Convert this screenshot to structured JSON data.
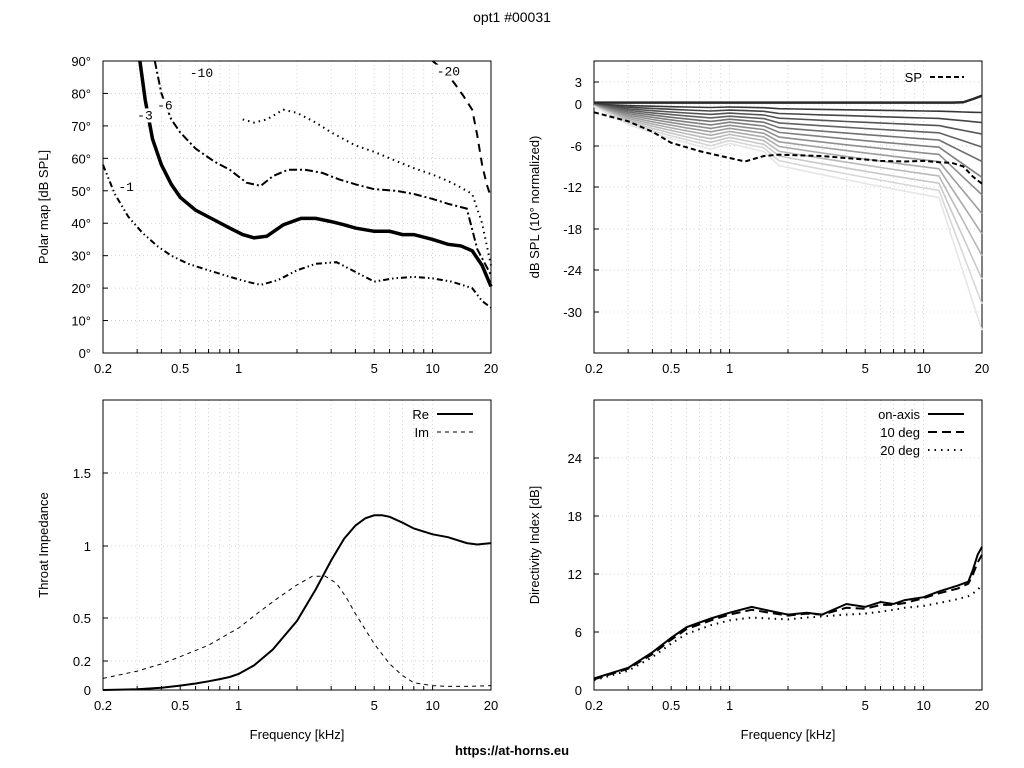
{
  "title": "opt1 #00031",
  "footer": "https://at-horns.eu",
  "chart_data": [
    {
      "id": "polar",
      "type": "line",
      "ylabel": "Polar map [dB SPL]",
      "xscale": "log",
      "xlim": [
        0.2,
        20
      ],
      "ylim": [
        0,
        90
      ],
      "xticks": [
        "0.2",
        "0.5",
        "1",
        "5",
        "10",
        "20"
      ],
      "yticks": [
        "0°",
        "10°",
        "20°",
        "30°",
        "40°",
        "50°",
        "60°",
        "70°",
        "80°",
        "90°"
      ],
      "grid": true,
      "series": [
        {
          "name": "-1",
          "x": [
            0.2,
            0.23,
            0.27,
            0.32,
            0.38,
            0.45,
            0.55,
            0.7,
            0.9,
            1.1,
            1.3,
            1.6,
            2.0,
            2.5,
            3.2,
            4.0,
            5.0,
            6.3,
            8.0,
            10,
            12.5,
            16,
            18,
            20
          ],
          "y": [
            58,
            49,
            42,
            37,
            33,
            30,
            27.5,
            25.5,
            23.5,
            22,
            21,
            22.5,
            25.5,
            27.5,
            28,
            25,
            22,
            23,
            23.5,
            23,
            22,
            20,
            16,
            14
          ],
          "label_x": 0.24,
          "label_y": 50
        },
        {
          "name": "-3",
          "x": [
            0.31,
            0.33,
            0.36,
            0.4,
            0.45,
            0.5,
            0.6,
            0.75,
            0.9,
            1.05,
            1.2,
            1.4,
            1.7,
            2.1,
            2.5,
            3.0,
            3.5,
            4.0,
            5.0,
            6.0,
            7.0,
            8.0,
            10,
            12,
            14,
            16,
            18,
            20
          ],
          "y": [
            90,
            78,
            66,
            58,
            52,
            48,
            44,
            41,
            38.5,
            36.5,
            35.5,
            36,
            39.5,
            41.5,
            41.5,
            40.5,
            39.5,
            38.5,
            37.5,
            37.5,
            36.5,
            36.5,
            35,
            33.5,
            33,
            31.5,
            27,
            20.5
          ],
          "label_x": 0.3,
          "label_y": 72
        },
        {
          "name": "-6",
          "x": [
            0.37,
            0.4,
            0.45,
            0.5,
            0.6,
            0.75,
            0.9,
            1.1,
            1.3,
            1.5,
            1.8,
            2.2,
            2.7,
            3.3,
            4.0,
            5.0,
            6.5,
            8.0,
            10,
            12,
            15,
            17,
            20
          ],
          "y": [
            90,
            80,
            72,
            68,
            63,
            59,
            56.5,
            52.5,
            51.5,
            54.5,
            56.5,
            56.5,
            55.5,
            53.5,
            52,
            50.5,
            50,
            49,
            47.5,
            46,
            44.5,
            32,
            24
          ],
          "label_x": 0.38,
          "label_y": 75
        },
        {
          "name": "-10",
          "x": [
            1.05,
            1.2,
            1.4,
            1.7,
            2.0,
            2.5,
            3.0,
            4.0,
            5.0,
            6.0,
            8.0,
            10,
            12,
            14,
            16,
            18,
            20
          ],
          "y": [
            72,
            71,
            72,
            75,
            74,
            71,
            68,
            64,
            62,
            60,
            57,
            55,
            53,
            51,
            49,
            40,
            27
          ],
          "label_x": 0.56,
          "label_y": 85
        },
        {
          "name": "-20",
          "x": [
            10,
            11.5,
            13,
            14.5,
            16,
            17,
            18,
            19,
            20
          ],
          "y": [
            90,
            87,
            83,
            79,
            75,
            67,
            58,
            52,
            48
          ],
          "label_x": 10.5,
          "label_y": 85.5
        }
      ]
    },
    {
      "id": "spl",
      "type": "line",
      "ylabel": "dB SPL (10° normalized)",
      "xscale": "log",
      "xlim": [
        0.2,
        20
      ],
      "ylim": [
        -36,
        5
      ],
      "xticks": [
        "0.2",
        "0.5",
        "1",
        "5",
        "10",
        "20"
      ],
      "yticks": [
        "3",
        "0",
        "-6",
        "-12",
        "-18",
        "-24",
        "-30"
      ],
      "grid": true,
      "legend": {
        "position": "top-right",
        "entries": [
          "SP"
        ]
      },
      "series": [
        {
          "name": "SP",
          "x": [
            0.2,
            0.3,
            0.4,
            0.5,
            0.7,
            0.9,
            1.2,
            1.5,
            1.8,
            2.2,
            3.0,
            4.0,
            5.0,
            6.0,
            8.0,
            10,
            12,
            14,
            16,
            18,
            20
          ],
          "y": [
            -1.2,
            -2.5,
            -4.0,
            -5.6,
            -6.8,
            -7.5,
            -8.3,
            -7.5,
            -7.3,
            -7.4,
            -7.5,
            -7.8,
            -8.0,
            -8.2,
            -8.3,
            -8.2,
            -8.4,
            -8.5,
            -9.0,
            -10.5,
            -11.5
          ]
        }
      ],
      "family_note": "gray family of off-axis curves from 0 dB (on-axis) to about -36 dB"
    },
    {
      "id": "impedance",
      "type": "line",
      "ylabel": "Throat Impedance",
      "xlabel": "Frequency [kHz]",
      "xscale": "log",
      "xlim": [
        0.2,
        20
      ],
      "ylim": [
        0,
        2
      ],
      "xticks": [
        "0.2",
        "0.5",
        "1",
        "5",
        "10",
        "20"
      ],
      "yticks": [
        "0",
        "0.2",
        "0.5",
        "1",
        "1.5"
      ],
      "grid": true,
      "legend": {
        "position": "top-right",
        "entries": [
          "Re",
          "Im"
        ]
      },
      "series": [
        {
          "name": "Re",
          "x": [
            0.2,
            0.3,
            0.4,
            0.5,
            0.6,
            0.7,
            0.8,
            0.9,
            1.0,
            1.2,
            1.5,
            2.0,
            2.5,
            3.0,
            3.5,
            4.0,
            4.5,
            5.0,
            5.5,
            6.0,
            7.0,
            8.0,
            10,
            12,
            15,
            17,
            20
          ],
          "y": [
            0.0,
            0.005,
            0.015,
            0.03,
            0.045,
            0.06,
            0.075,
            0.09,
            0.11,
            0.17,
            0.28,
            0.48,
            0.7,
            0.9,
            1.05,
            1.14,
            1.19,
            1.21,
            1.21,
            1.2,
            1.16,
            1.12,
            1.08,
            1.06,
            1.02,
            1.01,
            1.02
          ]
        },
        {
          "name": "Im",
          "x": [
            0.2,
            0.3,
            0.4,
            0.5,
            0.7,
            1.0,
            1.3,
            1.6,
            2.0,
            2.4,
            2.8,
            3.2,
            3.6,
            4.0,
            4.5,
            5.0,
            6.0,
            7.0,
            8.0,
            10,
            12,
            15,
            20
          ],
          "y": [
            0.08,
            0.13,
            0.18,
            0.23,
            0.31,
            0.43,
            0.55,
            0.64,
            0.73,
            0.79,
            0.79,
            0.74,
            0.64,
            0.53,
            0.42,
            0.32,
            0.18,
            0.1,
            0.05,
            0.03,
            0.025,
            0.025,
            0.03
          ]
        }
      ]
    },
    {
      "id": "di",
      "type": "line",
      "ylabel": "Directivity Index [dB]",
      "xlabel": "Frequency [kHz]",
      "xscale": "log",
      "xlim": [
        0.2,
        20
      ],
      "ylim": [
        0,
        30
      ],
      "xticks": [
        "0.2",
        "0.5",
        "1",
        "5",
        "10",
        "20"
      ],
      "yticks": [
        "0",
        "6",
        "12",
        "18",
        "24"
      ],
      "grid": true,
      "legend": {
        "position": "top-right",
        "entries": [
          "on-axis",
          "10 deg",
          "20 deg"
        ]
      },
      "series": [
        {
          "name": "on-axis",
          "x": [
            0.2,
            0.3,
            0.4,
            0.5,
            0.6,
            0.8,
            1.0,
            1.3,
            1.6,
            2.0,
            2.5,
            3.0,
            4.0,
            5.0,
            6.0,
            7.0,
            8.0,
            10,
            12,
            15,
            17,
            18,
            19,
            20
          ],
          "y": [
            1.2,
            2.3,
            3.9,
            5.4,
            6.5,
            7.4,
            8.0,
            8.6,
            8.2,
            7.8,
            8.0,
            7.8,
            8.9,
            8.6,
            9.1,
            8.9,
            9.3,
            9.6,
            10.2,
            10.8,
            11.2,
            12.5,
            14.0,
            14.8
          ]
        },
        {
          "name": "10 deg",
          "x": [
            0.2,
            0.3,
            0.4,
            0.5,
            0.6,
            0.8,
            1.0,
            1.3,
            1.6,
            2.0,
            2.5,
            3.0,
            4.0,
            5.0,
            6.0,
            7.0,
            8.0,
            10,
            12,
            15,
            17,
            18,
            19,
            20
          ],
          "y": [
            1.1,
            2.2,
            3.7,
            5.2,
            6.3,
            7.2,
            7.8,
            8.3,
            8.0,
            7.7,
            7.9,
            7.8,
            8.5,
            8.4,
            8.8,
            8.8,
            9.0,
            9.5,
            10.0,
            10.5,
            11.0,
            12.0,
            13.2,
            14.0
          ]
        },
        {
          "name": "20 deg",
          "x": [
            0.2,
            0.3,
            0.4,
            0.5,
            0.6,
            0.8,
            1.0,
            1.3,
            1.6,
            2.0,
            2.5,
            3.0,
            4.0,
            5.0,
            6.0,
            7.0,
            8.0,
            10,
            12,
            15,
            17,
            18,
            19,
            20
          ],
          "y": [
            1.0,
            2.0,
            3.4,
            4.8,
            5.8,
            6.7,
            7.2,
            7.5,
            7.4,
            7.3,
            7.5,
            7.6,
            7.8,
            7.9,
            8.1,
            8.3,
            8.5,
            8.7,
            9.0,
            9.4,
            9.7,
            10.0,
            10.4,
            10.8
          ]
        }
      ]
    }
  ]
}
